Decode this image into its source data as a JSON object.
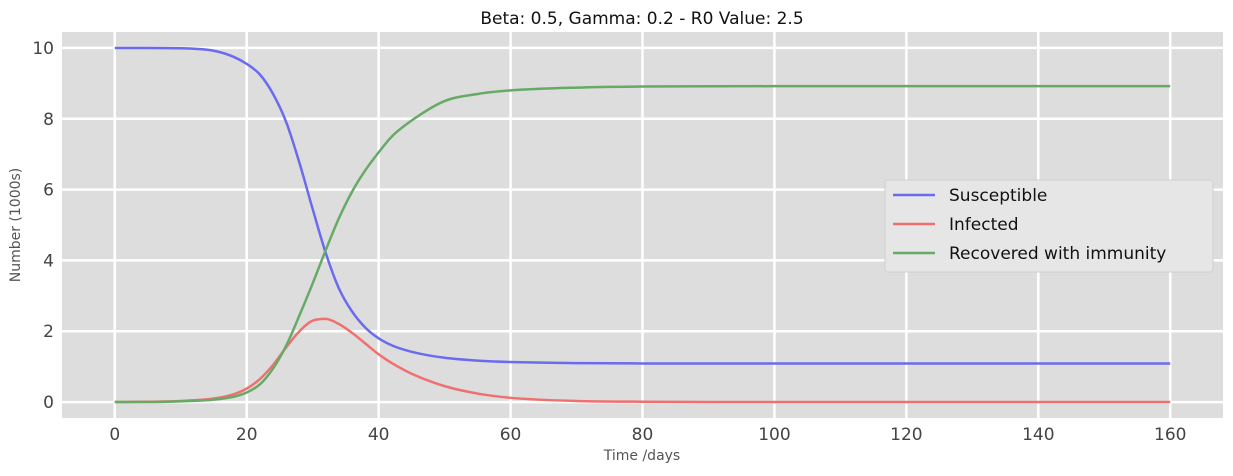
{
  "chart_data": {
    "type": "line",
    "title": "Beta: 0.5, Gamma: 0.2 - R0 Value: 2.5",
    "xlabel": "Time /days",
    "ylabel": "Number (1000s)",
    "xlim": [
      -8,
      168
    ],
    "ylim": [
      -0.45,
      10.45
    ],
    "xticks": [
      0,
      20,
      40,
      60,
      80,
      100,
      120,
      140,
      160
    ],
    "yticks": [
      0,
      2,
      4,
      6,
      8,
      10
    ],
    "grid": true,
    "legend_position": "center-right",
    "colors": {
      "plot_bg": "#dddddd",
      "grid": "#ffffff",
      "susceptible": "#6b6bf0",
      "infected": "#f07070",
      "recovered": "#66aa66"
    },
    "series": [
      {
        "name": "Susceptible",
        "x": [
          0,
          5,
          10,
          15,
          18,
          20,
          22,
          24,
          26,
          28,
          30,
          32,
          34,
          36,
          38,
          40,
          42,
          45,
          50,
          55,
          60,
          70,
          80,
          100,
          120,
          140,
          160
        ],
        "y": [
          10.0,
          10.0,
          9.99,
          9.92,
          9.75,
          9.55,
          9.25,
          8.7,
          7.9,
          6.75,
          5.45,
          4.2,
          3.2,
          2.55,
          2.1,
          1.8,
          1.6,
          1.42,
          1.25,
          1.17,
          1.13,
          1.1,
          1.09,
          1.09,
          1.09,
          1.09,
          1.09
        ]
      },
      {
        "name": "Infected",
        "x": [
          0,
          5,
          10,
          15,
          18,
          20,
          22,
          24,
          26,
          28,
          30,
          32,
          34,
          36,
          38,
          40,
          42,
          45,
          50,
          55,
          60,
          70,
          80,
          100,
          120,
          140,
          160
        ],
        "y": [
          0.0,
          0.01,
          0.03,
          0.1,
          0.22,
          0.38,
          0.65,
          1.05,
          1.55,
          2.0,
          2.3,
          2.35,
          2.2,
          1.95,
          1.65,
          1.35,
          1.1,
          0.8,
          0.45,
          0.24,
          0.12,
          0.03,
          0.01,
          0.0,
          0.0,
          0.0,
          0.0
        ]
      },
      {
        "name": "Recovered with immunity",
        "x": [
          0,
          5,
          10,
          15,
          18,
          20,
          22,
          24,
          26,
          28,
          30,
          32,
          34,
          36,
          38,
          40,
          42,
          45,
          50,
          55,
          60,
          70,
          80,
          100,
          120,
          140,
          160
        ],
        "y": [
          0.0,
          0.0,
          0.02,
          0.07,
          0.15,
          0.27,
          0.5,
          0.95,
          1.6,
          2.45,
          3.35,
          4.3,
          5.2,
          5.95,
          6.55,
          7.05,
          7.5,
          7.95,
          8.5,
          8.7,
          8.8,
          8.88,
          8.91,
          8.92,
          8.92,
          8.92,
          8.92
        ]
      }
    ]
  }
}
